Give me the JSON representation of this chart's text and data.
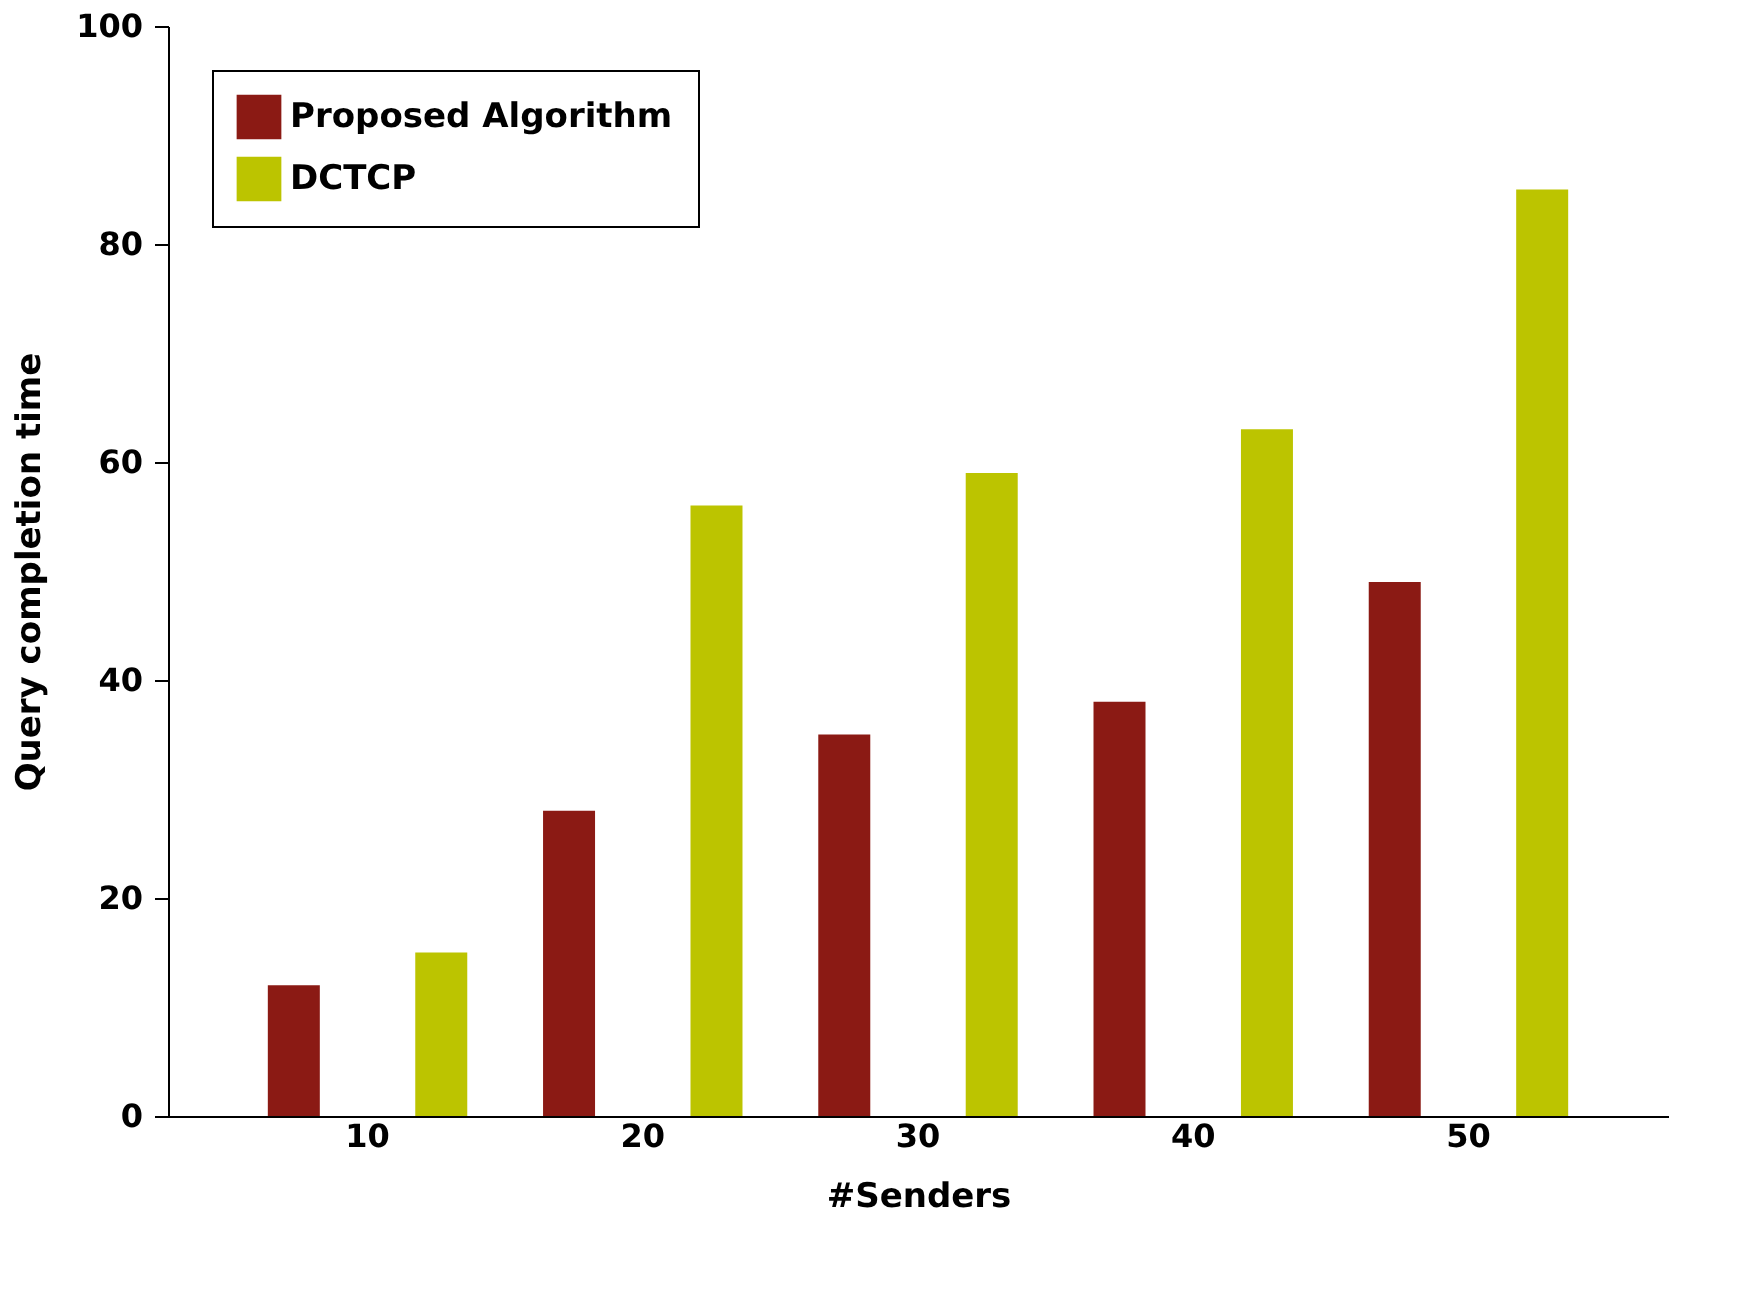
{
  "chart_data": {
    "type": "bar",
    "xlabel": "#Senders",
    "ylabel": "Query completion time",
    "categories": [
      "10",
      "20",
      "30",
      "40",
      "50"
    ],
    "series": [
      {
        "name": "Proposed Algorithm",
        "color": "#8b1a14",
        "values": [
          12,
          28,
          35,
          38,
          49
        ]
      },
      {
        "name": "DCTCP",
        "color": "#bcc400",
        "values": [
          15,
          56,
          59,
          63,
          85
        ]
      }
    ],
    "ylim": [
      0,
      100
    ],
    "yticks": [
      0,
      20,
      40,
      60,
      80,
      100
    ],
    "grid": false,
    "legend": "top left"
  }
}
